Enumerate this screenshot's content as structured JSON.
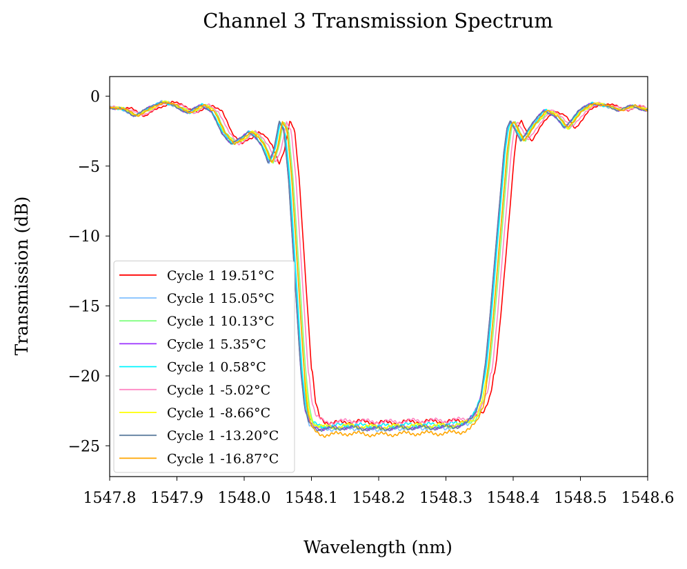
{
  "chart_data": {
    "type": "line",
    "title": "Channel 3 Transmission Spectrum",
    "xlabel": "Wavelength (nm)",
    "ylabel": "Transmission (dB)",
    "xlim": [
      1547.8,
      1548.6
    ],
    "ylim": [
      -27.2,
      1.4
    ],
    "xticks": [
      1547.8,
      1547.9,
      1548.0,
      1548.1,
      1548.2,
      1548.3,
      1548.4,
      1548.5,
      1548.6
    ],
    "xtick_labels": [
      "1547.8",
      "1547.9",
      "1548.0",
      "1548.1",
      "1548.2",
      "1548.3",
      "1548.4",
      "1548.5",
      "1548.6"
    ],
    "yticks": [
      0,
      -5,
      -10,
      -15,
      -20,
      -25
    ],
    "ytick_labels": [
      "0",
      "−5",
      "−10",
      "−15",
      "−20",
      "−25"
    ],
    "grid": false,
    "legend_position": "lower-left",
    "base_curve": {
      "x": [
        1547.8,
        1547.82,
        1547.84,
        1547.86,
        1547.88,
        1547.9,
        1547.92,
        1547.94,
        1547.955,
        1547.97,
        1547.985,
        1548.0,
        1548.01,
        1548.02,
        1548.03,
        1548.04,
        1548.048,
        1548.056,
        1548.063,
        1548.07,
        1548.076,
        1548.082,
        1548.088,
        1548.094,
        1548.1,
        1548.108,
        1548.118,
        1548.13,
        1548.15,
        1548.2,
        1548.25,
        1548.3,
        1548.32,
        1548.335,
        1548.345,
        1548.355,
        1548.363,
        1548.37,
        1548.377,
        1548.384,
        1548.39,
        1548.395,
        1548.4,
        1548.405,
        1548.415,
        1548.43,
        1548.45,
        1548.465,
        1548.48,
        1548.5,
        1548.52,
        1548.54,
        1548.56,
        1548.58,
        1548.6
      ],
      "y": [
        -0.8,
        -0.9,
        -1.4,
        -0.9,
        -0.4,
        -0.7,
        -1.2,
        -0.6,
        -1.1,
        -2.6,
        -3.4,
        -3.0,
        -2.5,
        -2.9,
        -3.6,
        -4.8,
        -3.8,
        -1.8,
        -2.5,
        -6.0,
        -10.5,
        -15.0,
        -19.5,
        -22.3,
        -23.3,
        -23.6,
        -23.7,
        -23.7,
        -23.6,
        -23.7,
        -23.6,
        -23.6,
        -23.5,
        -23.3,
        -22.8,
        -21.5,
        -19.0,
        -15.5,
        -11.5,
        -7.5,
        -4.0,
        -2.2,
        -1.8,
        -2.3,
        -3.2,
        -2.1,
        -1.0,
        -1.4,
        -2.3,
        -1.1,
        -0.5,
        -0.7,
        -1.0,
        -0.7,
        -1.0
      ]
    },
    "series": [
      {
        "name": "Cycle 1 19.51°C",
        "color": "#ff0000",
        "shift": 0.012,
        "floor_offset": 0.35,
        "ripple_phase": 0.4
      },
      {
        "name": "Cycle 1 15.05°C",
        "color": "#7fbfff",
        "shift": -0.003,
        "floor_offset": -0.1,
        "ripple_phase": 1.1
      },
      {
        "name": "Cycle 1 10.13°C",
        "color": "#80ff80",
        "shift": 0.003,
        "floor_offset": 0.0,
        "ripple_phase": 1.9
      },
      {
        "name": "Cycle 1 5.35°C",
        "color": "#9b30ff",
        "shift": -0.004,
        "floor_offset": -0.05,
        "ripple_phase": 2.6
      },
      {
        "name": "Cycle 1 0.58°C",
        "color": "#00f5ff",
        "shift": -0.002,
        "floor_offset": 0.1,
        "ripple_phase": 3.3
      },
      {
        "name": "Cycle 1 -5.02°C",
        "color": "#ff88c4",
        "shift": 0.007,
        "floor_offset": 0.4,
        "ripple_phase": 4.0
      },
      {
        "name": "Cycle 1 -8.66°C",
        "color": "#ffff00",
        "shift": 0.001,
        "floor_offset": 0.05,
        "ripple_phase": 4.7
      },
      {
        "name": "Cycle 1 -13.20°C",
        "color": "#5f7f9f",
        "shift": -0.004,
        "floor_offset": -0.1,
        "ripple_phase": 5.3
      },
      {
        "name": "Cycle 1 -16.87°C",
        "color": "#ffa500",
        "shift": 0.001,
        "floor_offset": -0.5,
        "ripple_phase": 6.0
      }
    ]
  }
}
